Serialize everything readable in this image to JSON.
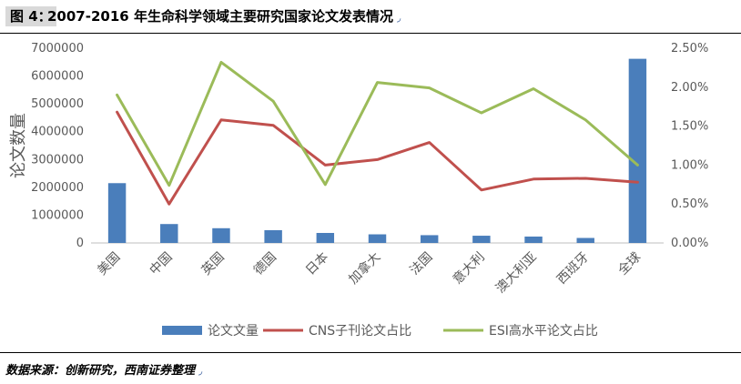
{
  "figure": {
    "label": "图 4：",
    "title": "2007-2016 年生命科学领域主要研究国家论文发表情况",
    "title_mark": "◞",
    "source": "数据来源：创新研究，西南证券整理",
    "source_mark": "◞"
  },
  "chart_data": {
    "type": "bar",
    "categories": [
      "美国",
      "中国",
      "英国",
      "德国",
      "日本",
      "加拿大",
      "法国",
      "意大利",
      "澳大利亚",
      "西班牙",
      "全球"
    ],
    "ylabel": "论文数量",
    "ylim": [
      0,
      7000000
    ],
    "y_ticks": [
      "0",
      "1000000",
      "2000000",
      "3000000",
      "4000000",
      "5000000",
      "6000000",
      "7000000"
    ],
    "y2lim": [
      0,
      0.025
    ],
    "y2_ticks": [
      "0.00%",
      "0.50%",
      "1.00%",
      "1.50%",
      "2.00%",
      "2.50%"
    ],
    "grid": false,
    "legend_position": "bottom",
    "series": [
      {
        "name": "论文文量",
        "kind": "bar",
        "axis": "left",
        "color": "#4a7ebb",
        "values": [
          2150000,
          680000,
          530000,
          460000,
          360000,
          310000,
          280000,
          260000,
          230000,
          180000,
          6620000
        ]
      },
      {
        "name": "CNS子刊论文占比",
        "kind": "line",
        "axis": "right",
        "color": "#c0504d",
        "values": [
          0.0168,
          0.005,
          0.0158,
          0.0151,
          0.01,
          0.0107,
          0.0129,
          0.0068,
          0.0082,
          0.0083,
          0.0078
        ]
      },
      {
        "name": "ESI高水平论文占比",
        "kind": "line",
        "axis": "right",
        "color": "#9bbb59",
        "values": [
          0.019,
          0.0074,
          0.0232,
          0.0182,
          0.0075,
          0.0206,
          0.0199,
          0.0167,
          0.0198,
          0.0158,
          0.01
        ]
      }
    ]
  }
}
